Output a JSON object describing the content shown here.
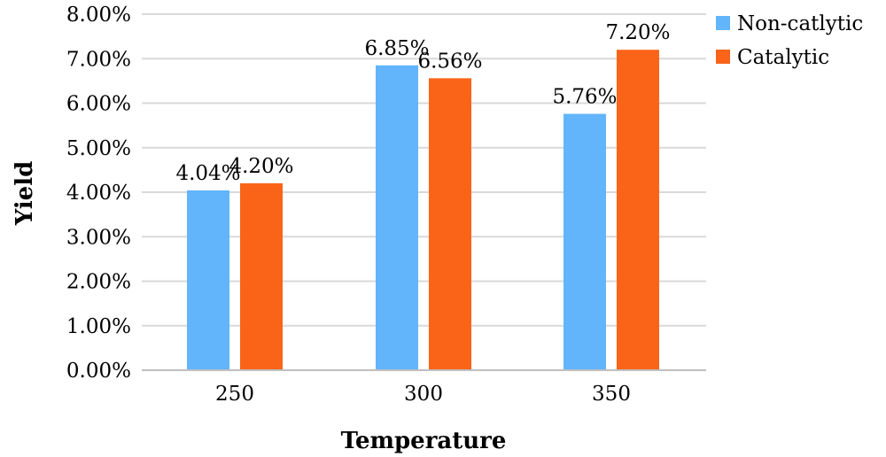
{
  "chart_data": {
    "type": "bar",
    "categories": [
      "250",
      "300",
      "350"
    ],
    "series": [
      {
        "name": "Non-catlytic",
        "values": [
          4.04,
          6.85,
          5.76
        ],
        "labels": [
          "4.04%",
          "6.85%",
          "5.76%"
        ],
        "color": "#62b5fb"
      },
      {
        "name": "Catalytic",
        "values": [
          4.2,
          6.56,
          7.2
        ],
        "labels": [
          "4.20%",
          "6.56%",
          "7.20%"
        ],
        "color": "#fa6418"
      }
    ],
    "title": "",
    "xlabel": "Temperature",
    "ylabel": "Yield",
    "ylim": [
      0,
      8
    ],
    "yticks": [
      0,
      1,
      2,
      3,
      4,
      5,
      6,
      7,
      8
    ],
    "ytick_labels": [
      "0.00%",
      "1.00%",
      "2.00%",
      "3.00%",
      "4.00%",
      "5.00%",
      "6.00%",
      "7.00%",
      "8.00%"
    ],
    "grid": true,
    "legend_position": "top-right"
  }
}
